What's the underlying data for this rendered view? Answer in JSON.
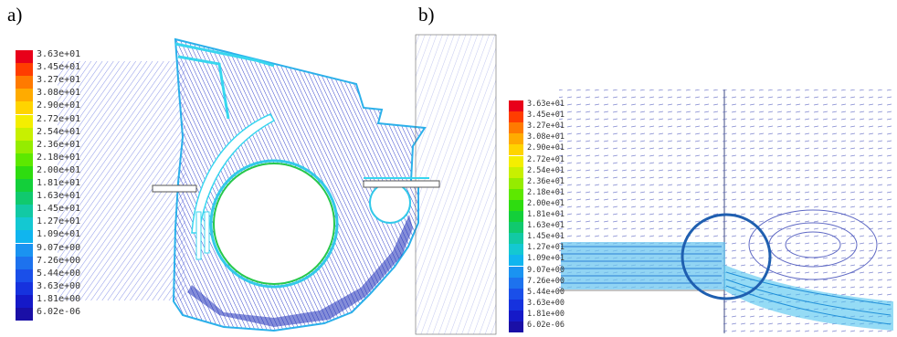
{
  "panels": [
    {
      "label": "a)"
    },
    {
      "label": "b)"
    }
  ],
  "colorbar_ticks": [
    "3.63e+01",
    "3.45e+01",
    "3.27e+01",
    "3.08e+01",
    "2.90e+01",
    "2.72e+01",
    "2.54e+01",
    "2.36e+01",
    "2.18e+01",
    "2.00e+01",
    "1.81e+01",
    "1.63e+01",
    "1.45e+01",
    "1.27e+01",
    "1.09e+01",
    "9.07e+00",
    "7.26e+00",
    "5.44e+00",
    "3.63e+00",
    "1.81e+00",
    "6.02e-06"
  ],
  "colormap": [
    "#e8001a",
    "#ff3d00",
    "#ff7a00",
    "#ffab00",
    "#ffd400",
    "#f4ee00",
    "#c8f000",
    "#95ec00",
    "#5de800",
    "#2edc10",
    "#13cf3a",
    "#10c96e",
    "#12c9a4",
    "#14c8d2",
    "#10b5ef",
    "#1a93f1",
    "#1d72ee",
    "#1a4fe9",
    "#1632de",
    "#1519c8",
    "#1a0fa6"
  ],
  "colors": {
    "vector_blue": "#2a3fd0",
    "accent_cyan": "#38d6ef",
    "highlight_circle": "#1f5fb0"
  }
}
